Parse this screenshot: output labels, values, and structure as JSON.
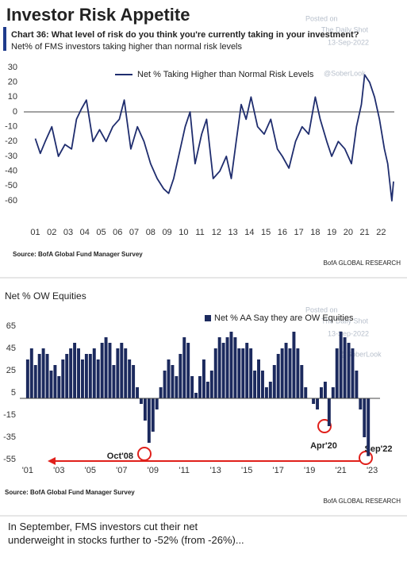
{
  "header": {
    "title": "Investor Risk Appetite"
  },
  "chart_data": [
    {
      "type": "line",
      "title": "Chart 36: What level of risk do you think you're currently taking in your investment?",
      "subtitle": "Net% of FMS investors taking higher than normal risk levels",
      "x": [
        2001.0,
        2001.3,
        2001.6,
        2002.0,
        2002.4,
        2002.8,
        2003.2,
        2003.5,
        2003.8,
        2004.1,
        2004.5,
        2004.9,
        2005.3,
        2005.7,
        2006.1,
        2006.4,
        2006.8,
        2007.2,
        2007.6,
        2008.0,
        2008.4,
        2008.8,
        2009.1,
        2009.4,
        2009.8,
        2010.1,
        2010.4,
        2010.7,
        2011.1,
        2011.4,
        2011.8,
        2012.2,
        2012.6,
        2012.9,
        2013.2,
        2013.5,
        2013.8,
        2014.1,
        2014.5,
        2014.9,
        2015.3,
        2015.7,
        2016.0,
        2016.4,
        2016.8,
        2017.2,
        2017.6,
        2018.0,
        2018.3,
        2018.7,
        2019.0,
        2019.4,
        2019.8,
        2020.2,
        2020.5,
        2020.8,
        2021.0,
        2021.3,
        2021.6,
        2021.9,
        2022.2,
        2022.4,
        2022.55,
        2022.65,
        2022.75
      ],
      "series": [
        {
          "name": "Net % Taking Higher than Normal Risk Levels",
          "color": "#1f2d6e",
          "values": [
            -18,
            -28,
            -20,
            -10,
            -30,
            -22,
            -25,
            -5,
            2,
            8,
            -20,
            -12,
            -20,
            -10,
            -5,
            8,
            -25,
            -10,
            -20,
            -35,
            -45,
            -52,
            -55,
            -45,
            -25,
            -10,
            0,
            -35,
            -15,
            -5,
            -45,
            -40,
            -30,
            -45,
            -20,
            5,
            -5,
            10,
            -10,
            -15,
            -5,
            -25,
            -30,
            -38,
            -20,
            -10,
            -15,
            10,
            -5,
            -20,
            -30,
            -20,
            -25,
            -35,
            -10,
            5,
            25,
            20,
            10,
            -5,
            -25,
            -35,
            -50,
            -60,
            -47
          ]
        }
      ],
      "xlim": [
        2000.3,
        2022.8
      ],
      "xticks": [
        {
          "value": 2001,
          "label": "01"
        },
        {
          "value": 2002,
          "label": "02"
        },
        {
          "value": 2003,
          "label": "03"
        },
        {
          "value": 2004,
          "label": "04"
        },
        {
          "value": 2005,
          "label": "05"
        },
        {
          "value": 2006,
          "label": "06"
        },
        {
          "value": 2007,
          "label": "07"
        },
        {
          "value": 2008,
          "label": "08"
        },
        {
          "value": 2009,
          "label": "09"
        },
        {
          "value": 2010,
          "label": "10"
        },
        {
          "value": 2011,
          "label": "11"
        },
        {
          "value": 2012,
          "label": "12"
        },
        {
          "value": 2013,
          "label": "13"
        },
        {
          "value": 2014,
          "label": "14"
        },
        {
          "value": 2015,
          "label": "15"
        },
        {
          "value": 2016,
          "label": "16"
        },
        {
          "value": 2017,
          "label": "17"
        },
        {
          "value": 2018,
          "label": "18"
        },
        {
          "value": 2019,
          "label": "19"
        },
        {
          "value": 2020,
          "label": "20"
        },
        {
          "value": 2021,
          "label": "21"
        },
        {
          "value": 2022,
          "label": "22"
        }
      ],
      "ylim": [
        -60,
        30
      ],
      "yticks": [
        30,
        20,
        10,
        0,
        -10,
        -20,
        -30,
        -40,
        -50,
        -60
      ],
      "source": "Source: BofA Global Fund Manager Survey",
      "credit": "BofA GLOBAL RESEARCH",
      "watermarks": [
        "Posted on",
        "The Daily Shot",
        "13-Sep-2022",
        "@SoberLook"
      ]
    },
    {
      "type": "bar",
      "title": "Net % OW Equities",
      "x": [
        2001.0,
        2001.25,
        2001.5,
        2001.75,
        2002.0,
        2002.25,
        2002.5,
        2002.75,
        2003.0,
        2003.25,
        2003.5,
        2003.75,
        2004.0,
        2004.25,
        2004.5,
        2004.75,
        2005.0,
        2005.25,
        2005.5,
        2005.75,
        2006.0,
        2006.25,
        2006.5,
        2006.75,
        2007.0,
        2007.25,
        2007.5,
        2007.75,
        2008.0,
        2008.25,
        2008.5,
        2008.75,
        2009.0,
        2009.25,
        2009.5,
        2009.75,
        2010.0,
        2010.25,
        2010.5,
        2010.75,
        2011.0,
        2011.25,
        2011.5,
        2011.75,
        2012.0,
        2012.25,
        2012.5,
        2012.75,
        2013.0,
        2013.25,
        2013.5,
        2013.75,
        2014.0,
        2014.25,
        2014.5,
        2014.75,
        2015.0,
        2015.25,
        2015.5,
        2015.75,
        2016.0,
        2016.25,
        2016.5,
        2016.75,
        2017.0,
        2017.25,
        2017.5,
        2017.75,
        2018.0,
        2018.25,
        2018.5,
        2018.75,
        2019.0,
        2019.25,
        2019.5,
        2019.75,
        2020.0,
        2020.25,
        2020.5,
        2020.75,
        2021.0,
        2021.25,
        2021.5,
        2021.75,
        2022.0,
        2022.25,
        2022.5,
        2022.75
      ],
      "series": [
        {
          "name": "Net % AA Say they are OW Equities",
          "color": "#1c2a5e",
          "values": [
            35,
            45,
            30,
            40,
            45,
            40,
            25,
            30,
            20,
            35,
            40,
            45,
            50,
            45,
            35,
            40,
            40,
            45,
            35,
            50,
            55,
            50,
            30,
            45,
            50,
            45,
            35,
            30,
            10,
            -5,
            -20,
            -40,
            -30,
            -10,
            10,
            25,
            35,
            30,
            20,
            40,
            55,
            50,
            20,
            5,
            20,
            35,
            15,
            25,
            45,
            55,
            50,
            55,
            60,
            55,
            45,
            45,
            50,
            45,
            25,
            35,
            25,
            10,
            15,
            30,
            40,
            45,
            50,
            45,
            60,
            45,
            30,
            10,
            0,
            -5,
            -10,
            10,
            15,
            -25,
            10,
            45,
            60,
            55,
            50,
            45,
            25,
            -10,
            -35,
            -52
          ]
        }
      ],
      "xlim": [
        2000.5,
        2023.5
      ],
      "xticks": [
        {
          "value": 2001,
          "label": "'01"
        },
        {
          "value": 2003,
          "label": "'03"
        },
        {
          "value": 2005,
          "label": "'05"
        },
        {
          "value": 2007,
          "label": "'07"
        },
        {
          "value": 2009,
          "label": "'09"
        },
        {
          "value": 2011,
          "label": "'11"
        },
        {
          "value": 2013,
          "label": "'13"
        },
        {
          "value": 2015,
          "label": "'15"
        },
        {
          "value": 2017,
          "label": "'17"
        },
        {
          "value": 2019,
          "label": "'19"
        },
        {
          "value": 2021,
          "label": "'21"
        },
        {
          "value": 2023,
          "label": "'23"
        }
      ],
      "ylim": [
        -55,
        65
      ],
      "yticks": [
        65,
        45,
        25,
        5,
        -15,
        -35,
        -55
      ],
      "annotations": [
        "Oct'08",
        "Apr'20",
        "Sep'22"
      ],
      "source": "Source: BofA Global Fund Manager Survey",
      "credit": "BofA GLOBAL RESEARCH",
      "watermarks": [
        "Posted on",
        "The Daily Shot",
        "13-Sep-2022",
        "@SoberLook"
      ]
    }
  ],
  "note": "In September, FMS investors cut their net underweight in stocks further to -52% (from -26%)..."
}
